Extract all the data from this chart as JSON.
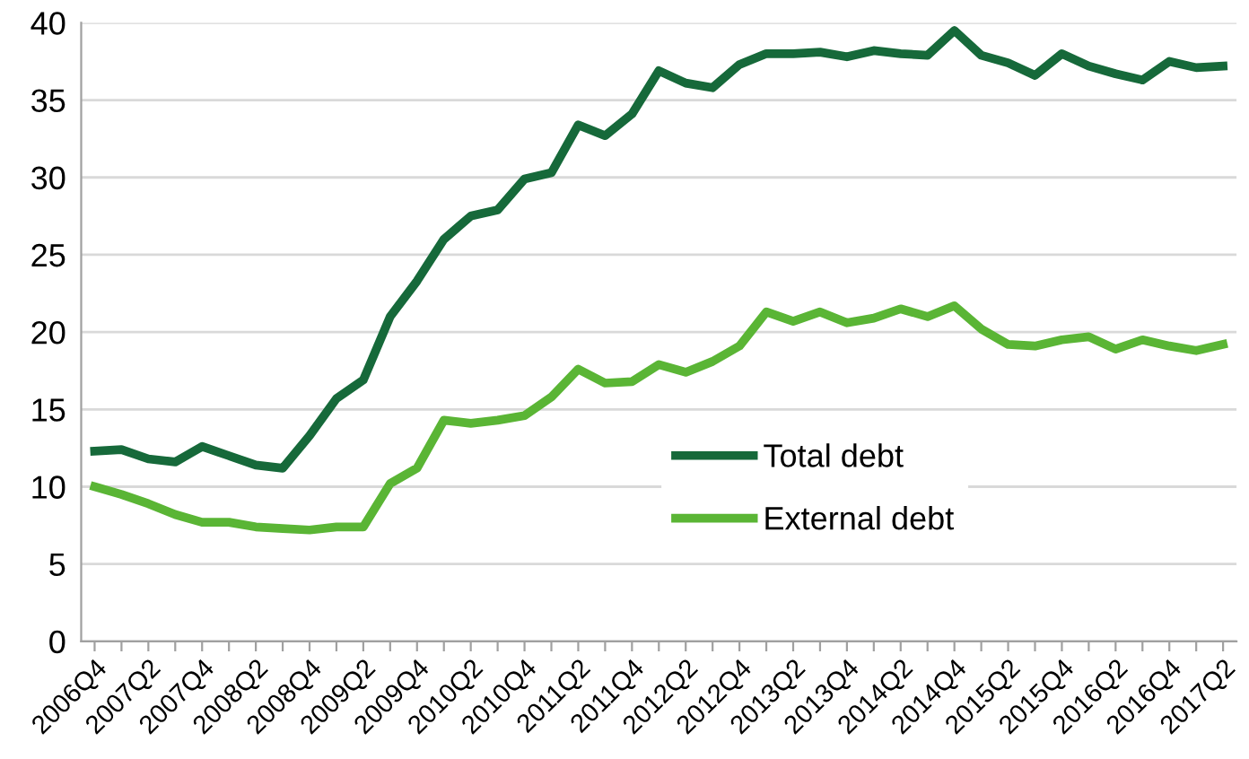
{
  "chart_data": {
    "type": "line",
    "categories": [
      "2006Q4",
      null,
      "2007Q2",
      null,
      "2007Q4",
      null,
      "2008Q2",
      null,
      "2008Q4",
      null,
      "2009Q2",
      null,
      "2009Q4",
      null,
      "2010Q2",
      null,
      "2010Q4",
      null,
      "2011Q2",
      null,
      "2011Q4",
      null,
      "2012Q2",
      null,
      "2012Q4",
      null,
      "2013Q2",
      null,
      "2013Q4",
      null,
      "2014Q2",
      null,
      "2014Q4",
      null,
      "2015Q2",
      null,
      "2015Q4",
      null,
      "2016Q2",
      null,
      "2016Q4",
      null,
      "2017Q2"
    ],
    "series": [
      {
        "name": "Total debt",
        "color": "#16693a",
        "values": [
          12.3,
          12.4,
          11.8,
          11.6,
          12.6,
          12.0,
          11.4,
          11.2,
          13.3,
          15.7,
          16.9,
          21.0,
          23.3,
          26.0,
          27.5,
          27.9,
          29.9,
          30.3,
          33.4,
          32.7,
          34.1,
          36.9,
          36.1,
          35.8,
          37.3,
          38.0,
          38.0,
          38.1,
          37.8,
          38.2,
          38.0,
          37.9,
          39.5,
          37.9,
          37.4,
          36.6,
          38.0,
          37.2,
          36.7,
          36.3,
          37.5,
          37.1,
          37.2
        ]
      },
      {
        "name": "External debt",
        "color": "#5ab535",
        "values": [
          10.0,
          9.5,
          8.9,
          8.2,
          7.7,
          7.7,
          7.4,
          7.3,
          7.2,
          7.4,
          7.4,
          10.2,
          11.2,
          14.3,
          14.1,
          14.3,
          14.6,
          15.8,
          17.6,
          16.7,
          16.8,
          17.9,
          17.4,
          18.1,
          19.1,
          21.3,
          20.7,
          21.3,
          20.6,
          20.9,
          21.5,
          21.0,
          21.7,
          20.2,
          19.2,
          19.1,
          19.5,
          19.7,
          18.9,
          19.5,
          19.1,
          18.8,
          19.2
        ]
      }
    ],
    "ylim": [
      0,
      40
    ],
    "yticks": [
      0,
      5,
      10,
      15,
      20,
      25,
      30,
      35,
      40
    ],
    "grid": "y",
    "legend": "center",
    "marker": "none",
    "line_style": "solid"
  }
}
